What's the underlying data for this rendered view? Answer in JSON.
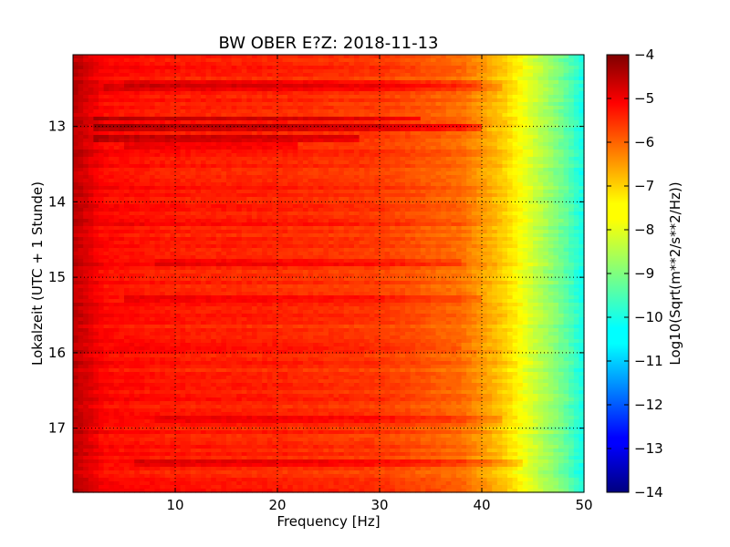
{
  "chart_data": {
    "type": "heatmap",
    "title": "BW OBER E?Z: 2018-11-13",
    "xlabel": "Frequency [Hz]",
    "ylabel": "Lokalzeit (UTC + 1 Stunde)",
    "xlim": [
      0,
      50
    ],
    "ylim": [
      17.85,
      12.05
    ],
    "y_axis_inverted": true,
    "x_ticks": [
      10,
      20,
      30,
      40,
      50
    ],
    "y_ticks": [
      13,
      14,
      15,
      16,
      17
    ],
    "grid": true,
    "grid_style": "dotted",
    "colormap": "jet",
    "colorbar": {
      "label": "Log10(Sqrt(m**2/s**2/Hz))",
      "range": [
        -14,
        -4
      ],
      "ticks": [
        -4,
        -5,
        -6,
        -7,
        -8,
        -9,
        -10,
        -11,
        -12,
        -13,
        -14
      ]
    },
    "spectral_profile": {
      "frequency_hz": [
        0,
        1,
        3,
        10,
        20,
        30,
        38,
        42,
        45,
        48,
        50
      ],
      "log_amplitude": [
        -4.6,
        -4.8,
        -5.3,
        -5.5,
        -5.6,
        -5.8,
        -6.3,
        -7.2,
        -8.2,
        -9.2,
        -10.1
      ]
    },
    "bands": [
      {
        "time": 12.9,
        "f_start": 2,
        "f_end": 34,
        "delta": 0.7
      },
      {
        "time": 13.0,
        "f_start": 2,
        "f_end": 40,
        "delta": 0.9
      },
      {
        "time": 13.15,
        "f_start": 2,
        "f_end": 28,
        "delta": 0.7
      },
      {
        "time": 13.25,
        "f_start": 5,
        "f_end": 22,
        "delta": 0.4
      },
      {
        "time": 12.45,
        "f_start": 5,
        "f_end": 40,
        "delta": 0.3
      },
      {
        "time": 12.5,
        "f_start": 3,
        "f_end": 42,
        "delta": 0.35
      },
      {
        "time": 14.8,
        "f_start": 8,
        "f_end": 38,
        "delta": 0.3
      },
      {
        "time": 15.3,
        "f_start": 5,
        "f_end": 40,
        "delta": 0.4
      },
      {
        "time": 16.9,
        "f_start": 8,
        "f_end": 42,
        "delta": 0.35
      },
      {
        "time": 17.45,
        "f_start": 6,
        "f_end": 44,
        "delta": 0.45
      },
      {
        "time": 14.3,
        "f_start": 3,
        "f_end": 40,
        "delta": 0.2
      },
      {
        "time": 15.9,
        "f_start": 4,
        "f_end": 38,
        "delta": 0.2
      }
    ]
  }
}
